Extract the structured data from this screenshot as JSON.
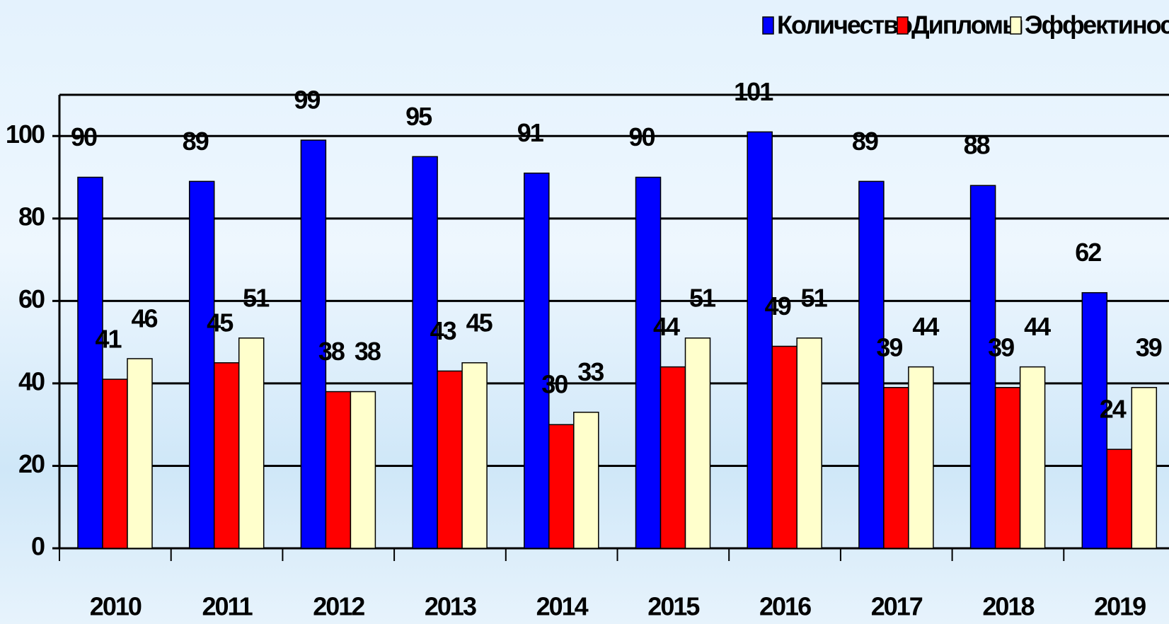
{
  "chart_data": {
    "type": "bar",
    "categories": [
      "2010",
      "2011",
      "2012",
      "2013",
      "2014",
      "2015",
      "2016",
      "2017",
      "2018",
      "2019"
    ],
    "series": [
      {
        "name": "Количество",
        "color": "#0000ff",
        "values": [
          90,
          89,
          99,
          95,
          91,
          90,
          101,
          89,
          88,
          62
        ]
      },
      {
        "name": "Дипломы",
        "color": "#ff0000",
        "values": [
          41,
          45,
          38,
          43,
          30,
          44,
          49,
          39,
          39,
          24
        ]
      },
      {
        "name": "Эффектиность",
        "color": "#ffffcc",
        "values": [
          46,
          51,
          38,
          45,
          33,
          51,
          51,
          44,
          44,
          39
        ]
      }
    ],
    "ylim": [
      0,
      110
    ],
    "yticks": [
      0,
      20,
      40,
      60,
      80,
      100
    ],
    "grid": true,
    "legend": "top-right"
  }
}
